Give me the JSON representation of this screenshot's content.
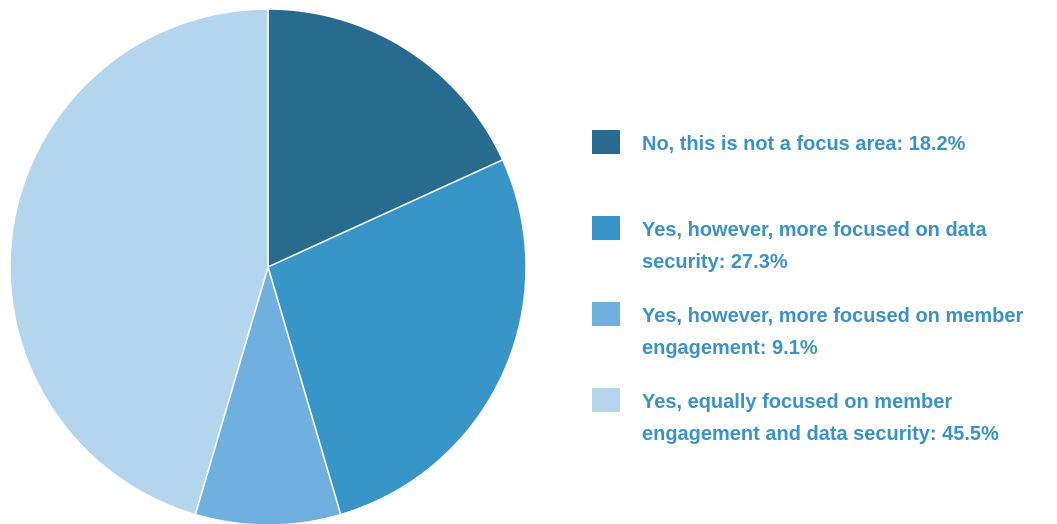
{
  "chart_data": {
    "type": "pie",
    "title": "",
    "legend_position": "right",
    "slices": [
      {
        "label": "No, this is not a focus area: 18.2%",
        "value": 18.2,
        "color": "#276b8f"
      },
      {
        "label": "Yes, however, more focused on data security: 27.3%",
        "value": 27.3,
        "color": "#3795c8"
      },
      {
        "label": "Yes, however, more focused on member engagement: 9.1%",
        "value": 9.1,
        "color": "#6fb0de"
      },
      {
        "label": "Yes, equally focused on member engagement and data security: 45.5%",
        "value": 45.5,
        "color": "#b3d5ee"
      }
    ]
  }
}
